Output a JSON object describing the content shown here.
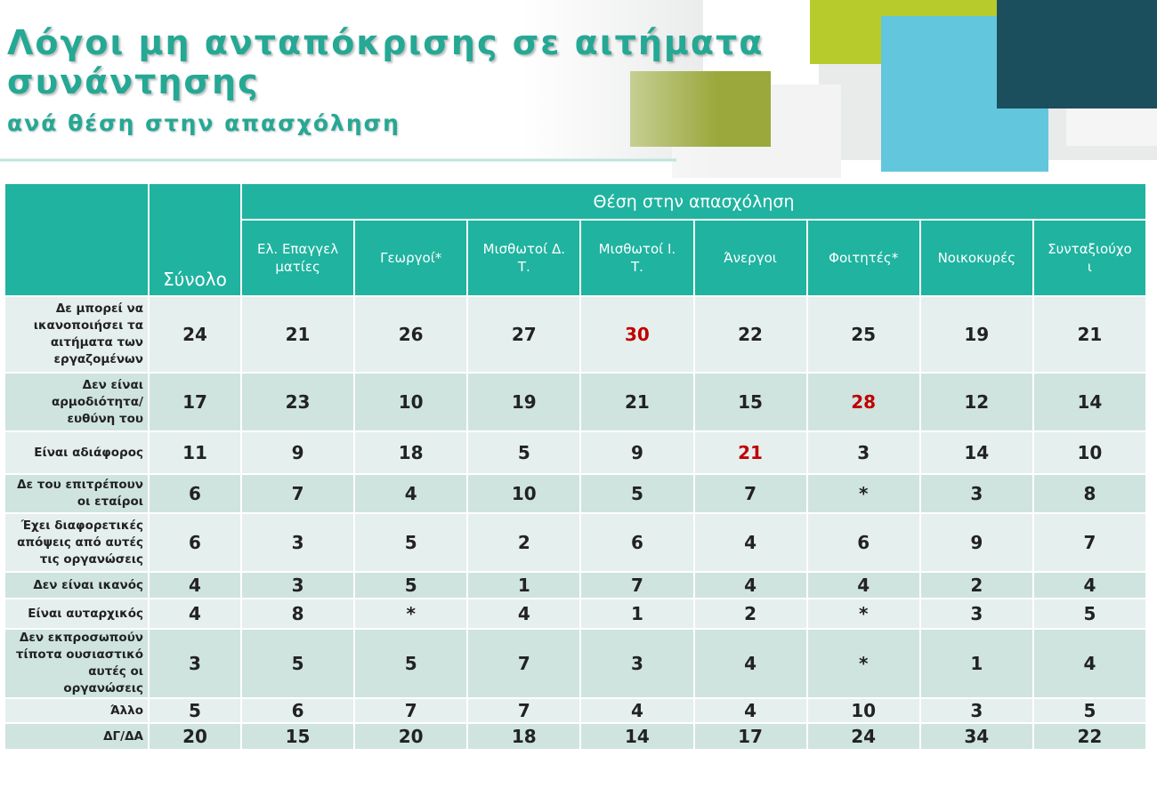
{
  "header": {
    "title_lines": [
      "Λόγοι μη ανταπόκρισης σε αιτήματα",
      "συνάντησης"
    ],
    "subtitle": "ανά θέση στην απασχόληση"
  },
  "table": {
    "total_header": "Σύνολο",
    "group_header": "Θέση στην απασχόληση",
    "columns": [
      "Ελ. Επαγγελματίες",
      "Γεωργοί*",
      "Μισθωτοί Δ.Τ.",
      "Μισθωτοί Ι.Τ.",
      "Άνεργοι",
      "Φοιτητές*",
      "Νοικοκυρές",
      "Συνταξιούχοι"
    ],
    "highlight_color": "#c00000",
    "rows": [
      {
        "label": "Δε μπορεί να ικανοποιήσει τα αιτήματα των εργαζομένων",
        "values": [
          24,
          21,
          26,
          27,
          30,
          22,
          25,
          19,
          21
        ],
        "highlight": 4
      },
      {
        "label": "Δεν είναι αρμοδιότητα/ευθύνη του",
        "values": [
          17,
          23,
          10,
          19,
          21,
          15,
          28,
          12,
          14
        ],
        "highlight": 6
      },
      {
        "label": "Είναι αδιάφορος",
        "values": [
          11,
          9,
          18,
          5,
          9,
          21,
          3,
          14,
          10
        ],
        "highlight": 5
      },
      {
        "label": "Δε του επιτρέπουν οι εταίροι",
        "values": [
          6,
          7,
          4,
          10,
          5,
          7,
          "*",
          3,
          8
        ]
      },
      {
        "label": "Έχει διαφορετικές απόψεις από αυτές τις οργανώσεις",
        "values": [
          6,
          3,
          5,
          2,
          6,
          4,
          6,
          9,
          7
        ]
      },
      {
        "label": "Δεν είναι ικανός",
        "values": [
          4,
          3,
          5,
          1,
          7,
          4,
          4,
          2,
          4
        ]
      },
      {
        "label": "Είναι αυταρχικός",
        "values": [
          4,
          8,
          "*",
          4,
          1,
          2,
          "*",
          3,
          5
        ]
      },
      {
        "label": "Δεν εκπροσωπούν τίποτα ουσιαστικό αυτές οι οργανώσεις",
        "values": [
          3,
          5,
          5,
          7,
          3,
          4,
          "*",
          1,
          4
        ]
      },
      {
        "label": "Άλλο",
        "values": [
          5,
          6,
          7,
          7,
          4,
          4,
          10,
          3,
          5
        ]
      },
      {
        "label": "ΔΓ/ΔΑ",
        "values": [
          20,
          15,
          20,
          18,
          14,
          17,
          24,
          34,
          22
        ]
      }
    ]
  }
}
